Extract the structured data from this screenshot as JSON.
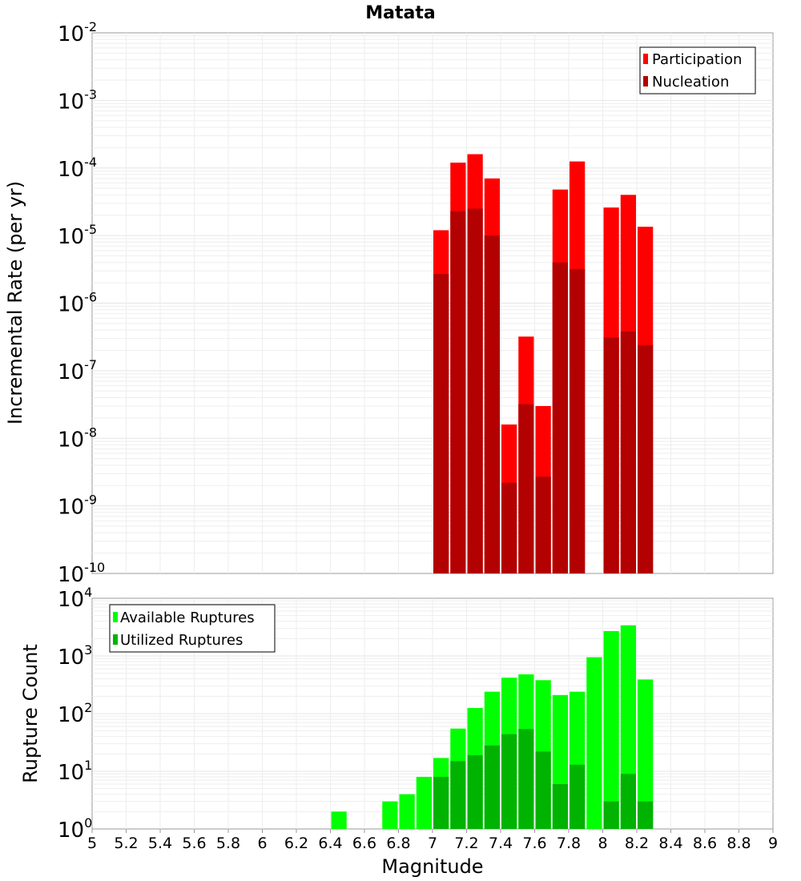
{
  "chart_data": [
    {
      "type": "bar",
      "title": "Matata",
      "ylabel": "Incremental Rate (per yr)",
      "yscale": "log",
      "ylim_exp": [
        -10,
        -2
      ],
      "grid": true,
      "legend_position": "top-right",
      "legend": [
        "Participation",
        "Nucleation"
      ],
      "colors": {
        "participation": "#ff0000",
        "nucleation": "#b30000"
      },
      "x": [
        7.0,
        7.1,
        7.2,
        7.3,
        7.4,
        7.5,
        7.6,
        7.7,
        7.8,
        8.0,
        8.1,
        8.2
      ],
      "series": [
        {
          "name": "Participation",
          "values": [
            1.2e-05,
            0.00012,
            0.00016,
            7e-05,
            1.6e-08,
            3.2e-07,
            3e-08,
            4.8e-05,
            0.000125,
            2.6e-05,
            4e-05,
            1.35e-05
          ]
        },
        {
          "name": "Nucleation",
          "values": [
            2.7e-06,
            2.3e-05,
            2.5e-05,
            1e-05,
            2.2e-09,
            3.2e-08,
            2.7e-09,
            4e-06,
            3.2e-06,
            3.1e-07,
            3.8e-07,
            2.4e-07
          ]
        }
      ]
    },
    {
      "type": "bar",
      "ylabel": "Rupture Count",
      "xlabel": "Magnitude",
      "yscale": "log",
      "ylim_exp": [
        0,
        4
      ],
      "xlim": [
        5,
        9
      ],
      "grid": true,
      "legend_position": "top-left",
      "legend": [
        "Available Ruptures",
        "Utilized Ruptures"
      ],
      "colors": {
        "available": "#00ff00",
        "utilized": "#00b300"
      },
      "x": [
        6.4,
        6.6,
        6.7,
        6.8,
        6.9,
        7.0,
        7.1,
        7.2,
        7.3,
        7.4,
        7.5,
        7.6,
        7.7,
        7.8,
        7.9,
        8.0,
        8.1,
        8.2
      ],
      "series": [
        {
          "name": "Available Ruptures",
          "values": [
            2,
            1,
            3,
            4,
            8,
            17,
            55,
            125,
            240,
            420,
            480,
            380,
            210,
            240,
            950,
            2700,
            3400,
            390
          ]
        },
        {
          "name": "Utilized Ruptures",
          "values": [
            0,
            0,
            0,
            0,
            0,
            8,
            15,
            19,
            28,
            44,
            54,
            22,
            6,
            13,
            0,
            3,
            9,
            3
          ]
        }
      ]
    }
  ],
  "x_ticks": [
    "5",
    "5.2",
    "5.4",
    "5.6",
    "5.8",
    "6",
    "6.2",
    "6.4",
    "6.6",
    "6.8",
    "7",
    "7.2",
    "7.4",
    "7.6",
    "7.8",
    "8",
    "8.2",
    "8.4",
    "8.6",
    "8.8",
    "9"
  ]
}
